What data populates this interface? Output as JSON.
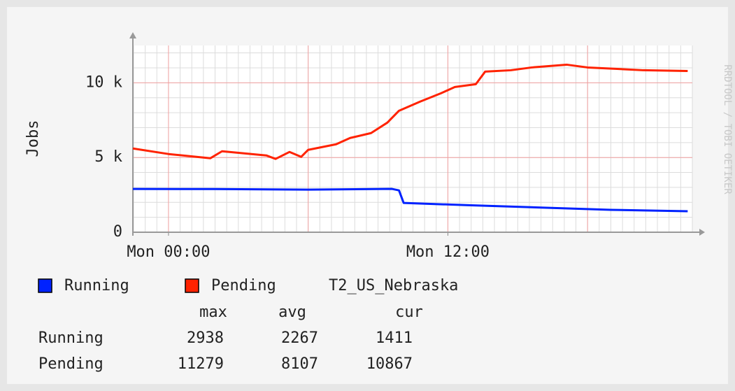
{
  "chart_data": {
    "type": "line",
    "ylabel": "Jobs",
    "watermark": "RRDTOOL / TOBI OETIKER",
    "xlim": [
      -1.53,
      22.5
    ],
    "xticks": [
      {
        "value": 0,
        "label": "Mon 00:00"
      },
      {
        "value": 12,
        "label": "Mon 12:00"
      }
    ],
    "x_major_grid": [
      0,
      6,
      12,
      18
    ],
    "x_minor_step": 0.5,
    "ylim": [
      0,
      12500
    ],
    "yticks": [
      0,
      {
        "value": 5000,
        "label": "5 k"
      },
      {
        "value": 10000,
        "label": "10 k"
      }
    ],
    "y_minor_step": 1000,
    "grid": true,
    "series": [
      {
        "name": "Running",
        "color": "#0022ff",
        "x": [
          -1.53,
          2,
          6,
          9.6,
          9.9,
          10.1,
          13,
          16,
          19,
          22.3
        ],
        "values": [
          2897,
          2890,
          2850,
          2900,
          2800,
          1963,
          1800,
          1650,
          1500,
          1402
        ]
      },
      {
        "name": "Pending",
        "color": "#ff2200",
        "x": [
          -1.53,
          0,
          1.8,
          2.3,
          4.2,
          4.6,
          5.2,
          5.7,
          6.0,
          6.6,
          7.2,
          7.8,
          8.7,
          9.4,
          9.9,
          10.8,
          11.7,
          12.3,
          13.2,
          13.6,
          14.7,
          15.6,
          17.1,
          18.0,
          19.2,
          20.4,
          22.3
        ],
        "values": [
          5607,
          5234,
          4953,
          5420,
          5140,
          4907,
          5374,
          5047,
          5514,
          5701,
          5888,
          6308,
          6636,
          7336,
          8131,
          8738,
          9299,
          9720,
          9907,
          10748,
          10841,
          11028,
          11215,
          11028,
          10935,
          10841,
          10794
        ]
      }
    ],
    "legend_title": "T2_US_Nebraska",
    "stats": {
      "headers": [
        "max",
        "avg",
        "cur"
      ],
      "rows": [
        [
          "Running",
          "2938",
          "2267",
          "1411"
        ],
        [
          "Pending",
          "11279",
          "8107",
          "10867"
        ]
      ]
    }
  }
}
